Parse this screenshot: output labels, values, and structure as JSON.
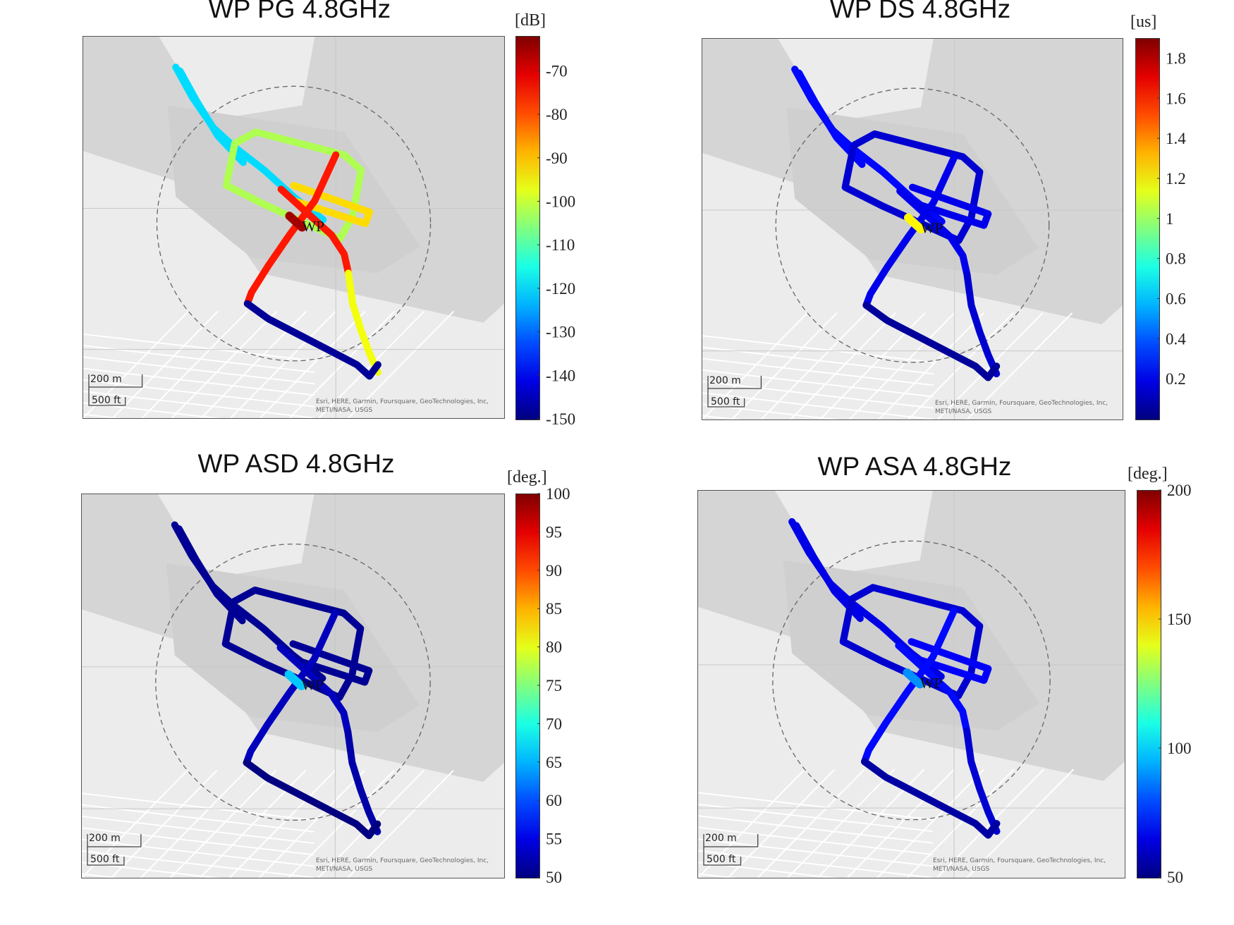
{
  "chart_data": [
    {
      "type": "scatter",
      "title": "WP PG 4.8GHz",
      "colorbar": {
        "unit": "[dB]",
        "ticks": [
          "-70",
          "-80",
          "-90",
          "-100",
          "-110",
          "-120",
          "-130",
          "-140",
          "-150"
        ],
        "range": [
          -150,
          -62
        ],
        "colormap": "jet"
      },
      "marker_label": "WP",
      "scale_labels": [
        "200 m",
        "500 ft"
      ],
      "attribution": [
        "Esri, HERE, Garmin, Foursquare, GeoTechnologies, Inc,",
        "METI/NASA, USGS"
      ],
      "route_values": {
        "nw_branch": -120,
        "upper_loop": -102,
        "cross_diagonal": -75,
        "ne_arm": -92,
        "south_leg": -96,
        "far_south": -148,
        "center": -65
      }
    },
    {
      "type": "scatter",
      "title": "WP DS 4.8GHz",
      "colorbar": {
        "unit": "[us]",
        "ticks": [
          "1.8",
          "1.6",
          "1.4",
          "1.2",
          "1",
          "0.8",
          "0.6",
          "0.4",
          "0.2"
        ],
        "range": [
          0,
          1.9
        ],
        "colormap": "jet"
      },
      "marker_label": "WP",
      "scale_labels": [
        "200 m",
        "500 ft"
      ],
      "attribution": [
        "Esri, HERE, Garmin, Foursquare, GeoTechnologies, Inc,",
        "METI/NASA, USGS"
      ],
      "route_values": {
        "nw_branch": 0.25,
        "upper_loop": 0.15,
        "cross_diagonal": 0.2,
        "ne_arm": 0.2,
        "south_leg": 0.15,
        "far_south": 0.05,
        "center": 1.2
      }
    },
    {
      "type": "scatter",
      "title": "WP ASD 4.8GHz",
      "colorbar": {
        "unit": "[deg.]",
        "ticks": [
          "100",
          "95",
          "90",
          "85",
          "80",
          "75",
          "70",
          "65",
          "60",
          "55",
          "50"
        ],
        "range": [
          50,
          100
        ],
        "colormap": "jet"
      },
      "marker_label": "WP",
      "scale_labels": [
        "200 m",
        "500 ft"
      ],
      "attribution": [
        "Esri, HERE, Garmin, Foursquare, GeoTechnologies, Inc,",
        "METI/NASA, USGS"
      ],
      "route_values": {
        "nw_branch": 51,
        "upper_loop": 51,
        "cross_diagonal": 53,
        "ne_arm": 51,
        "south_leg": 52,
        "far_south": 50,
        "center": 66
      }
    },
    {
      "type": "scatter",
      "title": "WP ASA 4.8GHz",
      "colorbar": {
        "unit": "[deg.]",
        "ticks": [
          "200",
          "150",
          "100",
          "50"
        ],
        "range": [
          50,
          200
        ],
        "colormap": "jet"
      },
      "marker_label": "WP",
      "scale_labels": [
        "200 m",
        "500 ft"
      ],
      "attribution": [
        "Esri, HERE, Garmin, Foursquare, GeoTechnologies, Inc,",
        "METI/NASA, USGS"
      ],
      "route_values": {
        "nw_branch": 65,
        "upper_loop": 62,
        "cross_diagonal": 70,
        "ne_arm": 68,
        "south_leg": 62,
        "far_south": 55,
        "center": 90
      }
    }
  ]
}
